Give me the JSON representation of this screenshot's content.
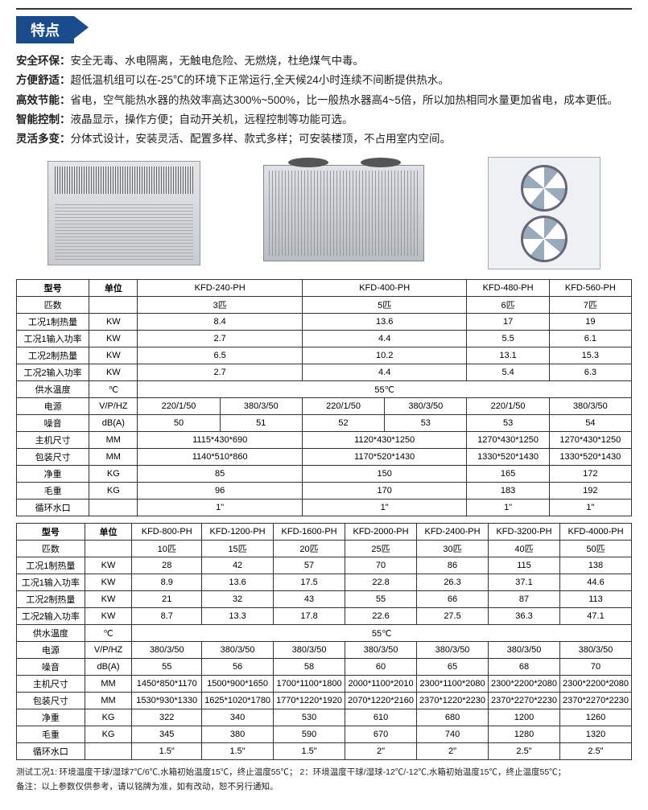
{
  "colors": {
    "brand": "#1a4b8c",
    "border": "#333333",
    "text": "#222222"
  },
  "sectionTitle": "特点",
  "features": [
    {
      "label": "安全环保：",
      "text": "安全无毒、水电隔离，无触电危险、无燃烧，杜绝煤气中毒。"
    },
    {
      "label": "方便舒适：",
      "text": "超低温机组可以在-25℃的环境下正常运行,全天候24小时连续不间断提供热水。"
    },
    {
      "label": "高效节能：",
      "text": "省电，空气能热水器的热效率高达300%~500%，比一般热水器高4~5倍，所以加热相同水量更加省电，成本更低。"
    },
    {
      "label": "智能控制：",
      "text": "液晶显示，操作方便；自动开关机，远程控制等功能可选。"
    },
    {
      "label": "灵活多变：",
      "text": "分体式设计，安装灵活、配置多样、款式多样；可安装楼顶，不占用室内空间。"
    }
  ],
  "t1": {
    "rows": [
      {
        "label": "型号",
        "unit": "单位",
        "cells": [
          {
            "v": "KFD-240-PH",
            "span": 2
          },
          {
            "v": "KFD-400-PH",
            "span": 2
          },
          {
            "v": "KFD-480-PH",
            "span": 1
          },
          {
            "v": "KFD-560-PH",
            "span": 1
          }
        ]
      },
      {
        "label": "匹数",
        "unit": "",
        "cells": [
          {
            "v": "3匹",
            "span": 2
          },
          {
            "v": "5匹",
            "span": 2
          },
          {
            "v": "6匹",
            "span": 1
          },
          {
            "v": "7匹",
            "span": 1
          }
        ]
      },
      {
        "label": "工况1制热量",
        "unit": "KW",
        "cells": [
          {
            "v": "8.4",
            "span": 2
          },
          {
            "v": "13.6",
            "span": 2
          },
          {
            "v": "17",
            "span": 1
          },
          {
            "v": "19",
            "span": 1
          }
        ]
      },
      {
        "label": "工况1输入功率",
        "unit": "KW",
        "cells": [
          {
            "v": "2.7",
            "span": 2
          },
          {
            "v": "4.4",
            "span": 2
          },
          {
            "v": "5.5",
            "span": 1
          },
          {
            "v": "6.1",
            "span": 1
          }
        ]
      },
      {
        "label": "工况2制热量",
        "unit": "KW",
        "cells": [
          {
            "v": "6.5",
            "span": 2
          },
          {
            "v": "10.2",
            "span": 2
          },
          {
            "v": "13.1",
            "span": 1
          },
          {
            "v": "15.3",
            "span": 1
          }
        ]
      },
      {
        "label": "工况2输入功率",
        "unit": "KW",
        "cells": [
          {
            "v": "2.7",
            "span": 2
          },
          {
            "v": "4.4",
            "span": 2
          },
          {
            "v": "5.4",
            "span": 1
          },
          {
            "v": "6.3",
            "span": 1
          }
        ]
      },
      {
        "label": "供水温度",
        "unit": "℃",
        "cells": [
          {
            "v": "55℃",
            "span": 6
          }
        ]
      },
      {
        "label": "电源",
        "unit": "V/P/HZ",
        "cells": [
          {
            "v": "220/1/50",
            "span": 1
          },
          {
            "v": "380/3/50",
            "span": 1
          },
          {
            "v": "220/1/50",
            "span": 1
          },
          {
            "v": "380/3/50",
            "span": 1
          },
          {
            "v": "220/1/50",
            "span": 1
          },
          {
            "v": "380/3/50",
            "span": 1
          }
        ]
      },
      {
        "label": "噪音",
        "unit": "dB(A)",
        "cells": [
          {
            "v": "50",
            "span": 1
          },
          {
            "v": "51",
            "span": 1
          },
          {
            "v": "52",
            "span": 1
          },
          {
            "v": "53",
            "span": 1
          },
          {
            "v": "53",
            "span": 1
          },
          {
            "v": "54",
            "span": 1
          }
        ]
      },
      {
        "label": "主机尺寸",
        "unit": "MM",
        "cells": [
          {
            "v": "1115*430*690",
            "span": 2
          },
          {
            "v": "1120*430*1250",
            "span": 2
          },
          {
            "v": "1270*430*1250",
            "span": 1
          },
          {
            "v": "1270*430*1250",
            "span": 1
          }
        ]
      },
      {
        "label": "包装尺寸",
        "unit": "MM",
        "cells": [
          {
            "v": "1140*510*860",
            "span": 2
          },
          {
            "v": "1170*520*1430",
            "span": 2
          },
          {
            "v": "1330*520*1430",
            "span": 1
          },
          {
            "v": "1330*520*1430",
            "span": 1
          }
        ]
      },
      {
        "label": "净重",
        "unit": "KG",
        "cells": [
          {
            "v": "85",
            "span": 2
          },
          {
            "v": "150",
            "span": 2
          },
          {
            "v": "165",
            "span": 1
          },
          {
            "v": "172",
            "span": 1
          }
        ]
      },
      {
        "label": "毛重",
        "unit": "KG",
        "cells": [
          {
            "v": "96",
            "span": 2
          },
          {
            "v": "170",
            "span": 2
          },
          {
            "v": "183",
            "span": 1
          },
          {
            "v": "192",
            "span": 1
          }
        ]
      },
      {
        "label": "循环水口",
        "unit": "",
        "cells": [
          {
            "v": "1\"",
            "span": 2
          },
          {
            "v": "1\"",
            "span": 2
          },
          {
            "v": "1\"",
            "span": 1
          },
          {
            "v": "1\"",
            "span": 1
          }
        ]
      }
    ],
    "colWidths": [
      "90px",
      "60px",
      "1fr",
      "1fr",
      "1fr",
      "1fr",
      "1fr",
      "1fr"
    ]
  },
  "t2": {
    "headerModels": [
      "KFD-800-PH",
      "KFD-1200-PH",
      "KFD-1600-PH",
      "KFD-2000-PH",
      "KFD-2400-PH",
      "KFD-3200-PH",
      "KFD-4000-PH"
    ],
    "rows": [
      {
        "label": "型号",
        "unit": "单位",
        "cells": [
          "KFD-800-PH",
          "KFD-1200-PH",
          "KFD-1600-PH",
          "KFD-2000-PH",
          "KFD-2400-PH",
          "KFD-3200-PH",
          "KFD-4000-PH"
        ]
      },
      {
        "label": "匹数",
        "unit": "",
        "cells": [
          "10匹",
          "15匹",
          "20匹",
          "25匹",
          "30匹",
          "40匹",
          "50匹"
        ]
      },
      {
        "label": "工况1制热量",
        "unit": "KW",
        "cells": [
          "28",
          "42",
          "57",
          "70",
          "86",
          "115",
          "138"
        ]
      },
      {
        "label": "工况1输入功率",
        "unit": "KW",
        "cells": [
          "8.9",
          "13.6",
          "17.5",
          "22.8",
          "26.3",
          "37.1",
          "44.6"
        ]
      },
      {
        "label": "工况2制热量",
        "unit": "KW",
        "cells": [
          "21",
          "32",
          "43",
          "55",
          "66",
          "87",
          "113"
        ]
      },
      {
        "label": "工况2输入功率",
        "unit": "KW",
        "cells": [
          "8.7",
          "13.3",
          "17.8",
          "22.6",
          "27.5",
          "36.3",
          "47.1"
        ]
      },
      {
        "label": "供水温度",
        "unit": "℃",
        "cells": [
          {
            "v": "55℃",
            "span": 7
          }
        ]
      },
      {
        "label": "电源",
        "unit": "V/P/HZ",
        "cells": [
          "380/3/50",
          "380/3/50",
          "380/3/50",
          "380/3/50",
          "380/3/50",
          "380/3/50",
          "380/3/50"
        ]
      },
      {
        "label": "噪音",
        "unit": "dB(A)",
        "cells": [
          "55",
          "56",
          "58",
          "60",
          "65",
          "68",
          "70"
        ]
      },
      {
        "label": "主机尺寸",
        "unit": "MM",
        "cells": [
          "1450*850*1170",
          "1500*900*1650",
          "1700*1100*1800",
          "2000*1100*2010",
          "2300*1100*2080",
          "2300*2200*2080",
          "2300*2200*2080"
        ]
      },
      {
        "label": "包装尺寸",
        "unit": "MM",
        "cells": [
          "1530*930*1330",
          "1625*1020*1780",
          "1770*1220*1920",
          "2070*1220*2160",
          "2370*1220*2230",
          "2370*2270*2230",
          "2370*2270*2230"
        ]
      },
      {
        "label": "净重",
        "unit": "KG",
        "cells": [
          "322",
          "340",
          "530",
          "610",
          "680",
          "1200",
          "1260"
        ]
      },
      {
        "label": "毛重",
        "unit": "KG",
        "cells": [
          "345",
          "380",
          "590",
          "670",
          "740",
          "1280",
          "1320"
        ]
      },
      {
        "label": "循环水口",
        "unit": "",
        "cells": [
          "1.5\"",
          "1.5\"",
          "1.5\"",
          "2\"",
          "2\"",
          "2.5\"",
          "2.5\""
        ]
      }
    ]
  },
  "footnotes": [
    "测试工况1: 环境温度干球/湿球7℃/6℃,水箱初始温度15℃，终止温度55℃；  2：环境温度干球/湿球-12℃/-12℃,水箱初始温度15℃，终止温度55℃；",
    "备注：以上参数仅供参考，请以铭牌为准，如有改动，恕不另行通知。"
  ]
}
